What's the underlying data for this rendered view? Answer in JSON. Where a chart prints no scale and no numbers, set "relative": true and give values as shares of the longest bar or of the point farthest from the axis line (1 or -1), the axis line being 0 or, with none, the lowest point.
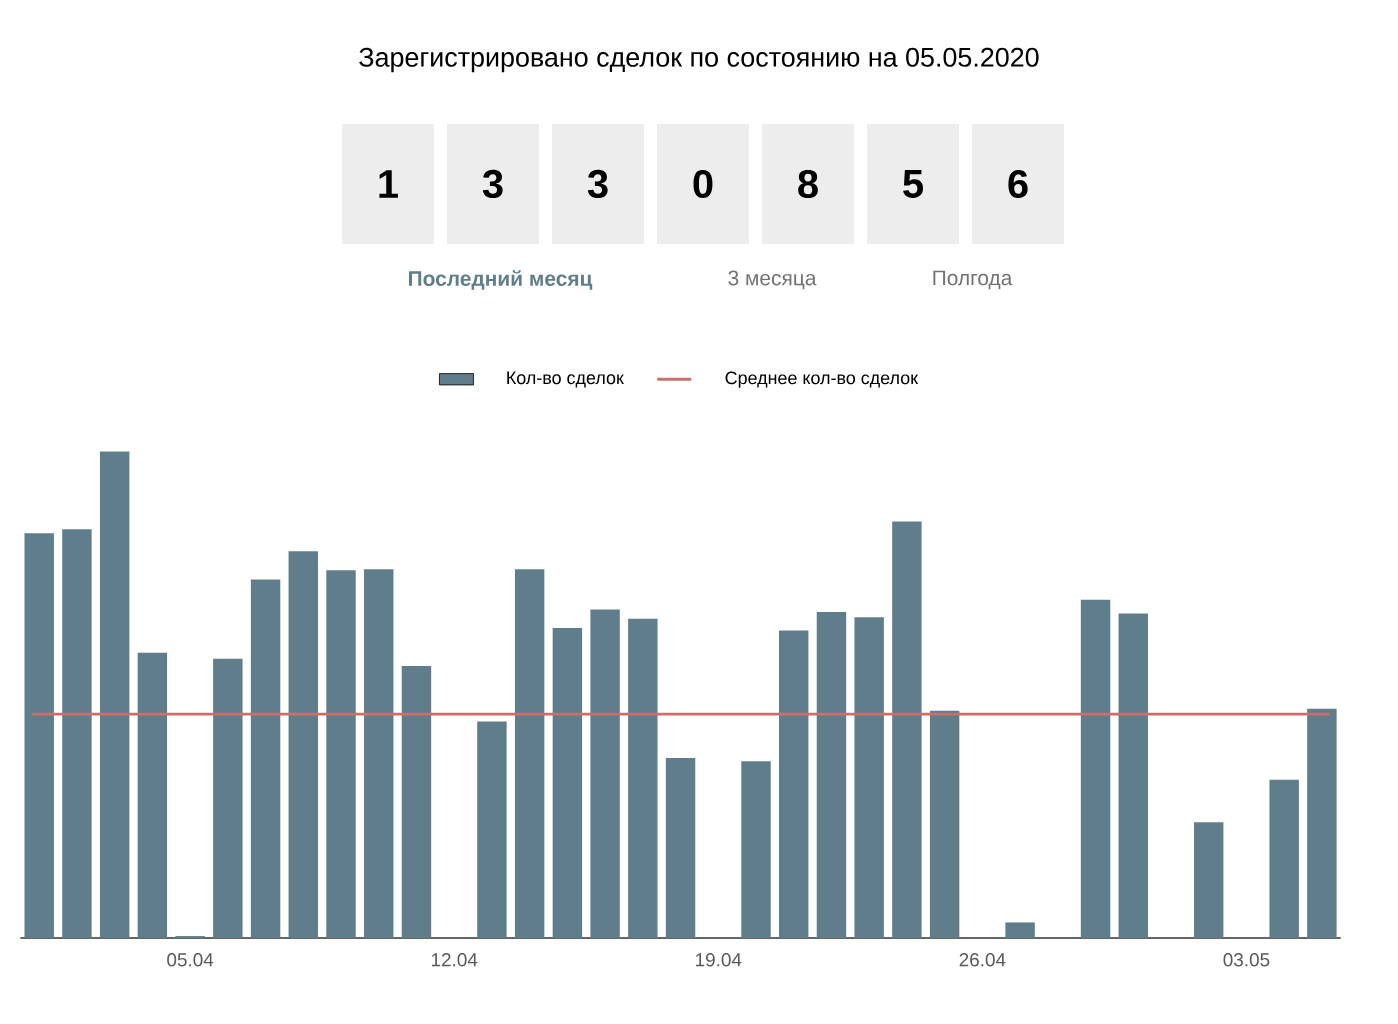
{
  "chart_data": {
    "type": "bar",
    "title": "Зарегистрировано сделок по состоянию на 05.05.2020",
    "annotations": [
      "1",
      "3",
      "3",
      "0",
      "8",
      "5",
      "6",
      "Последний месяц",
      "3 месяца",
      "Полгода"
    ],
    "relative": true,
    "categories": [
      null,
      null,
      null,
      null,
      "05.04",
      null,
      null,
      null,
      null,
      null,
      null,
      "12.04",
      null,
      null,
      null,
      null,
      null,
      null,
      "19.04",
      null,
      null,
      null,
      null,
      null,
      null,
      "26.04",
      null,
      null,
      null,
      null,
      null,
      null,
      "03.05",
      null,
      null
    ],
    "series": [
      {
        "name": "Кол-во сделок",
        "color": "#607d8b",
        "values": [
          0.832,
          0.84,
          1,
          0.586,
          0.004,
          0.574,
          0.737,
          0.795,
          0.756,
          0.758,
          0.559,
          0,
          0.445,
          0.758,
          0.637,
          0.675,
          0.656,
          0.37,
          0,
          0.363,
          0.632,
          0.67,
          0.659,
          0.856,
          0.467,
          0,
          0.032,
          0,
          0.695,
          0.667,
          0,
          0.238,
          0,
          0.325,
          0.471
        ]
      }
    ],
    "ref_lines": [
      {
        "axis": "y",
        "value": 0.46,
        "label": "Среднее кол-во сделок",
        "color": "#c9706c"
      }
    ],
    "legend": "top",
    "grid": false
  }
}
